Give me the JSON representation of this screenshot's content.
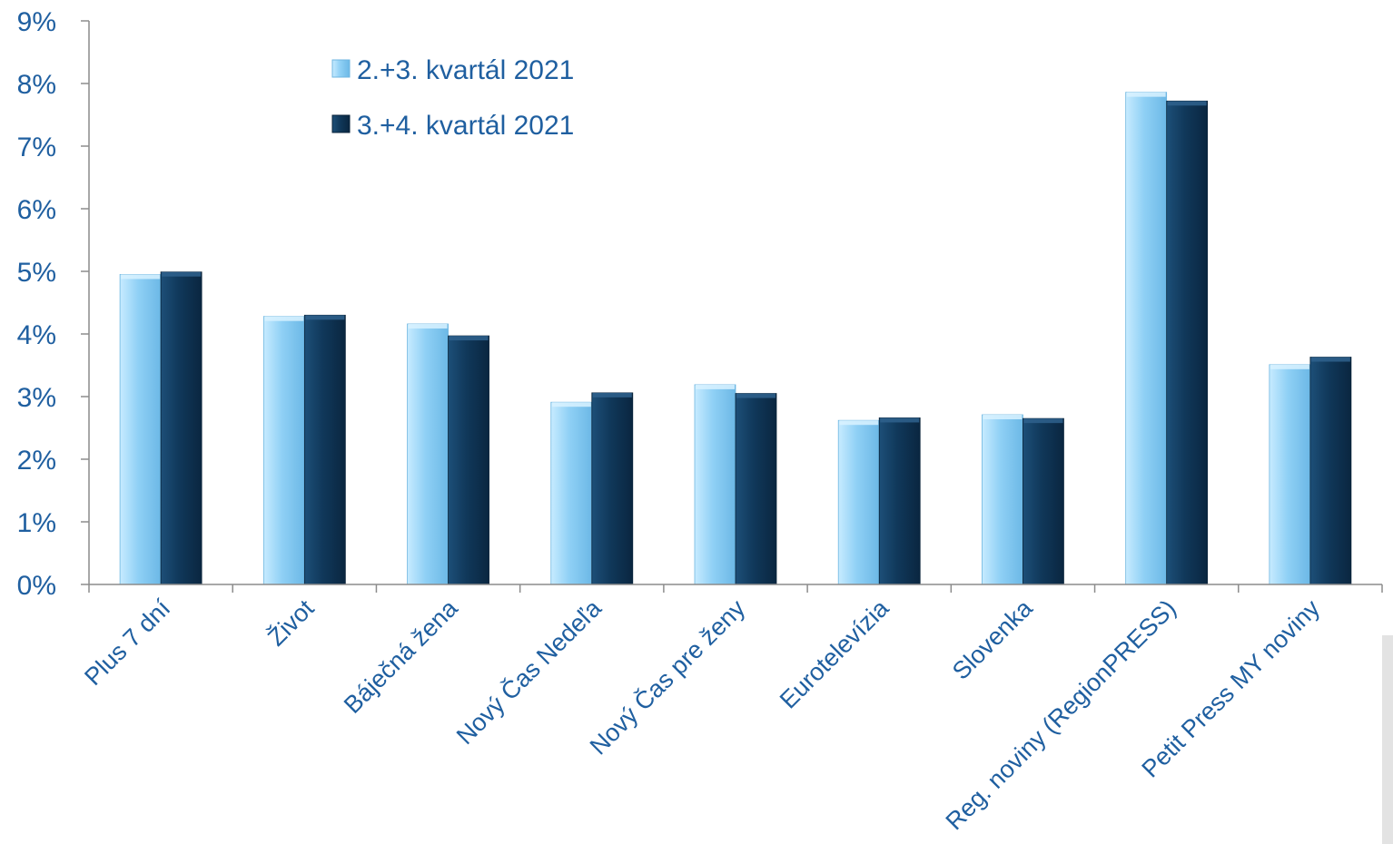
{
  "chart_data": {
    "type": "bar",
    "title": "",
    "xlabel": "",
    "ylabel": "",
    "ylim": [
      0,
      9
    ],
    "y_tick_values": [
      0,
      1,
      2,
      3,
      4,
      5,
      6,
      7,
      8,
      9
    ],
    "y_tick_labels": [
      "0%",
      "1%",
      "2%",
      "3%",
      "4%",
      "5%",
      "6%",
      "7%",
      "8%",
      "9%"
    ],
    "categories": [
      "Plus 7 dní",
      "Život",
      "Báječná žena",
      "Nový Čas Nedeľa",
      "Nový Čas pre ženy",
      "Eurotelevízia",
      "Slovenka",
      "Reg. noviny (RegionPRESS)",
      "Petit Press MY noviny"
    ],
    "series": [
      {
        "name": "2.+3. kvartál 2021",
        "color": "#8fd0f5",
        "values": [
          4.95,
          4.28,
          4.16,
          2.91,
          3.19,
          2.62,
          2.71,
          7.86,
          3.51
        ]
      },
      {
        "name": "3.+4. kvartál 2021",
        "color": "#10385a",
        "values": [
          4.99,
          4.3,
          3.97,
          3.06,
          3.05,
          2.66,
          2.65,
          7.72,
          3.63
        ]
      }
    ],
    "legend_position": "top-left",
    "grid": false
  }
}
